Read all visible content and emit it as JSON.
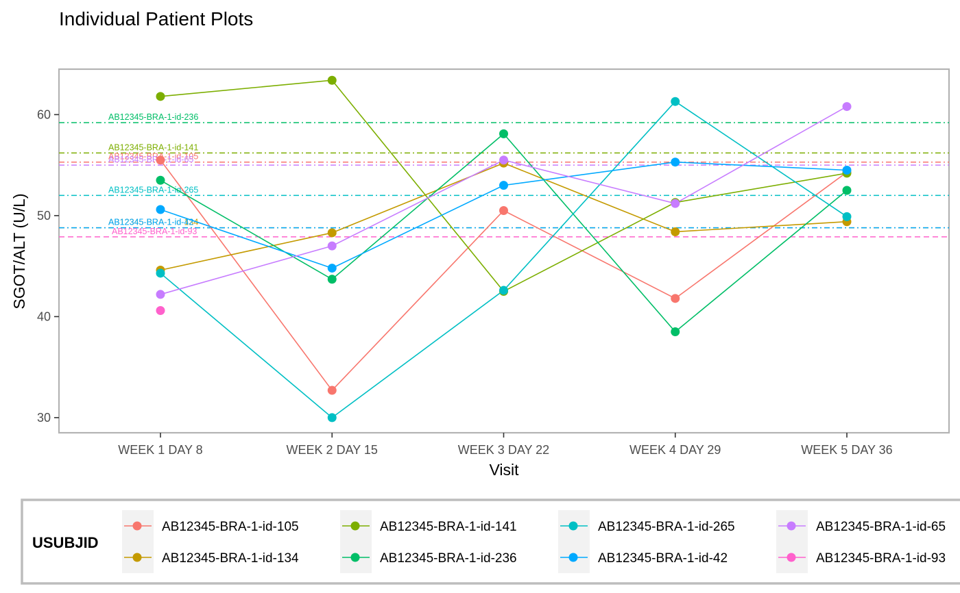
{
  "chart_data": {
    "type": "line",
    "title": "Individual Patient Plots",
    "xlabel": "Visit",
    "ylabel": "SGOT/ALT (U/L)",
    "categories": [
      "WEEK 1 DAY 8",
      "WEEK 2 DAY 15",
      "WEEK 3 DAY 22",
      "WEEK 4 DAY 29",
      "WEEK 5 DAY 36"
    ],
    "ylim": [
      28.5,
      64.5
    ],
    "yticks": [
      30,
      40,
      50,
      60
    ],
    "grid": false,
    "legend": {
      "title": "USUBJID",
      "position": "bottom"
    },
    "series": [
      {
        "name": "AB12345-BRA-1-id-105",
        "color": "#F8766D",
        "values": [
          55.5,
          32.7,
          50.5,
          41.8,
          54.3
        ],
        "ref": 55.3,
        "ref_dash": "dashdot"
      },
      {
        "name": "AB12345-BRA-1-id-134",
        "color": "#C49A00",
        "values": [
          44.6,
          48.3,
          55.2,
          48.4,
          49.4
        ],
        "ref": 48.8,
        "ref_dash": "dashdot"
      },
      {
        "name": "AB12345-BRA-1-id-141",
        "color": "#7CAE00",
        "values": [
          61.8,
          63.4,
          42.5,
          51.3,
          54.2
        ],
        "ref": 56.2,
        "ref_dash": "dashdot"
      },
      {
        "name": "AB12345-BRA-1-id-236",
        "color": "#00BE67",
        "values": [
          53.5,
          43.7,
          58.1,
          38.5,
          52.5
        ],
        "ref": 59.2,
        "ref_dash": "dashdot"
      },
      {
        "name": "AB12345-BRA-1-id-265",
        "color": "#00BFC4",
        "values": [
          44.3,
          30.0,
          42.6,
          61.3,
          49.9
        ],
        "ref": 52.0,
        "ref_dash": "dashdot"
      },
      {
        "name": "AB12345-BRA-1-id-42",
        "color": "#00A9FF",
        "values": [
          50.6,
          44.8,
          53.0,
          55.3,
          54.5
        ],
        "ref": 48.8,
        "ref_dash": "dashdot"
      },
      {
        "name": "AB12345-BRA-1-id-65",
        "color": "#C77CFF",
        "values": [
          42.2,
          47.0,
          55.5,
          51.2,
          60.8
        ],
        "ref": 55.0,
        "ref_dash": "dashdot"
      },
      {
        "name": "AB12345-BRA-1-id-93",
        "color": "#FF61CC",
        "values": [
          40.6,
          null,
          null,
          null,
          null
        ],
        "ref": 47.9,
        "ref_dash": "dashed"
      }
    ]
  }
}
